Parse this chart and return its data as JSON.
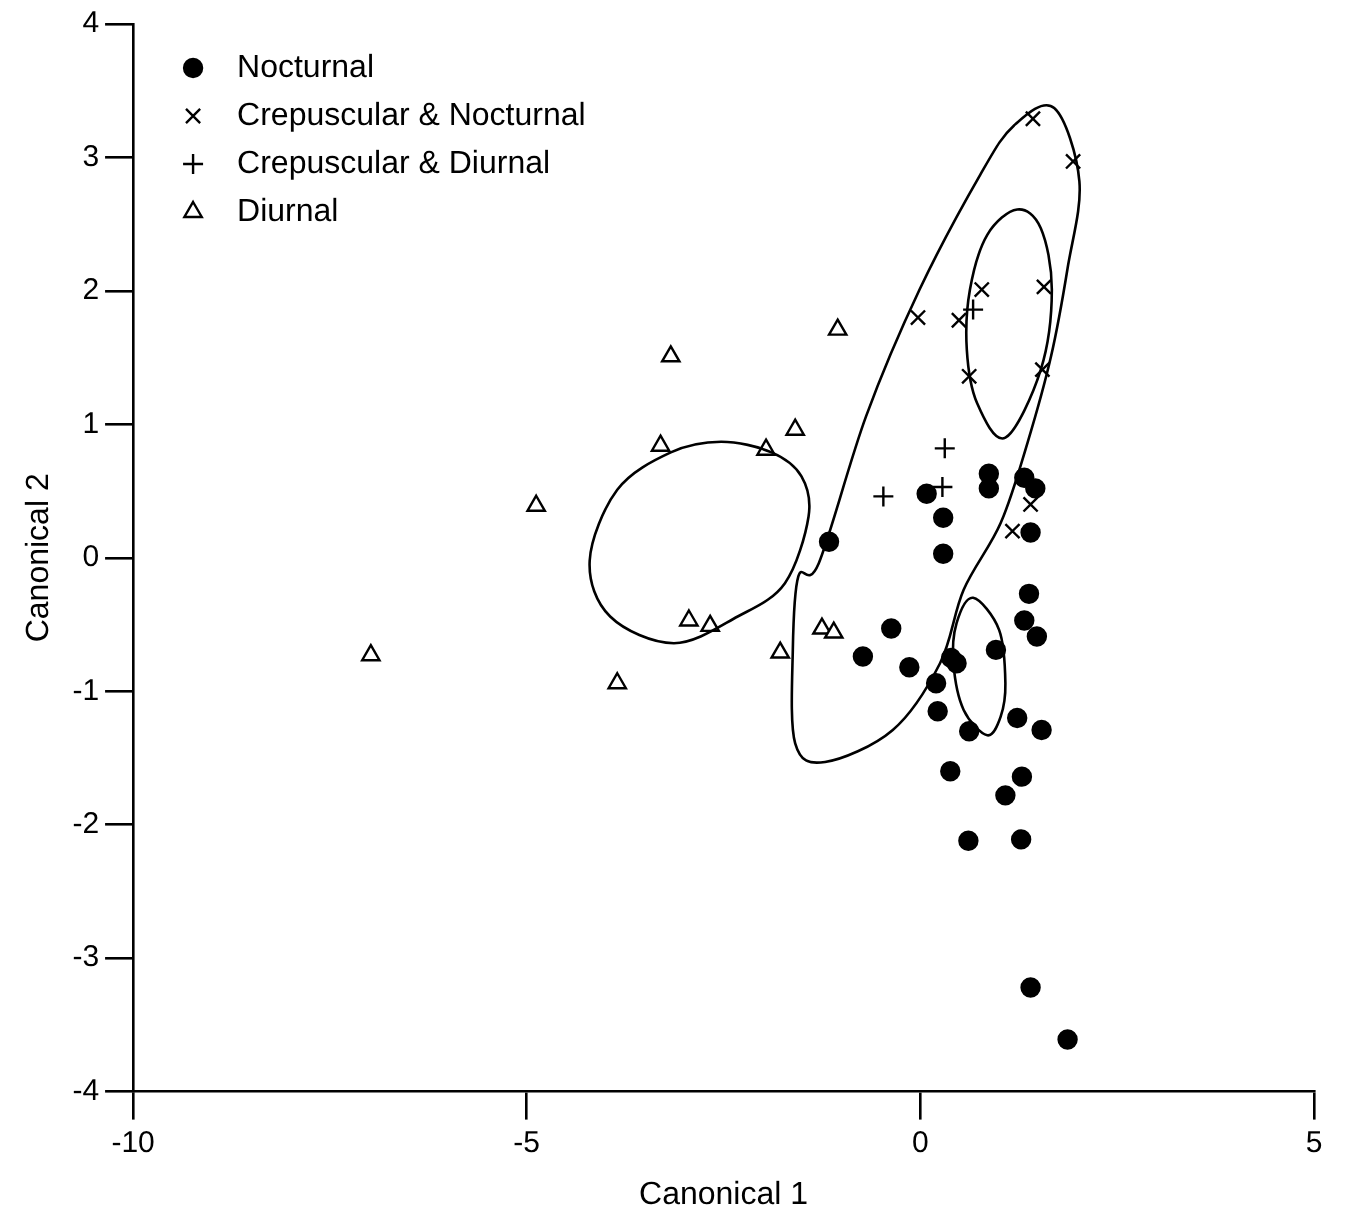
{
  "chart_data": {
    "type": "scatter",
    "xlabel": "Canonical 1",
    "ylabel": "Canonical 2",
    "xlim": [
      -10,
      5
    ],
    "xticks": [
      -10,
      -5,
      0,
      5
    ],
    "ylim": [
      -4,
      4
    ],
    "yticks": [
      -4,
      -3,
      -2,
      -1,
      0,
      1,
      2,
      3,
      4
    ],
    "grid": false,
    "legend": "top left",
    "series": [
      {
        "name": "Nocturnal",
        "color": "#000000",
        "marker": "circle",
        "x": [
          -1.16,
          0.08,
          0.29,
          0.29,
          0.87,
          0.87,
          1.32,
          1.46,
          1.4,
          1.38,
          1.32,
          1.48,
          -0.37,
          -0.73,
          -0.14,
          0.39,
          0.46,
          0.96,
          0.2,
          0.22,
          0.62,
          1.23,
          1.54,
          0.38,
          1.29,
          1.08,
          0.61,
          1.28,
          1.4,
          1.87
        ],
        "values": [
          0.12,
          0.48,
          0.3,
          0.03,
          0.63,
          0.52,
          0.6,
          0.52,
          0.19,
          -0.27,
          -0.47,
          -0.59,
          -0.53,
          -0.74,
          -0.82,
          -0.75,
          -0.79,
          -0.69,
          -0.94,
          -1.15,
          -1.3,
          -1.2,
          -1.29,
          -1.6,
          -1.64,
          -1.78,
          -2.12,
          -2.11,
          -3.22,
          -3.61
        ]
      },
      {
        "name": "Crepuscular & Nocturnal",
        "color": "#000000",
        "marker": "cross",
        "x": [
          1.43,
          1.94,
          0.78,
          1.57,
          -0.03,
          0.49,
          0.62,
          1.55,
          1.4,
          1.17
        ],
        "values": [
          3.29,
          2.97,
          2.01,
          2.03,
          1.8,
          1.78,
          1.36,
          1.41,
          0.4,
          0.2
        ]
      },
      {
        "name": "Crepuscular & Diurnal",
        "color": "#000000",
        "marker": "plus",
        "x": [
          0.67,
          0.31,
          0.28,
          -0.47
        ],
        "values": [
          1.86,
          0.82,
          0.53,
          0.46
        ]
      },
      {
        "name": "Diurnal",
        "color": "#000000",
        "marker": "triangle",
        "x": [
          -1.05,
          -3.17,
          -1.59,
          -3.3,
          -1.96,
          -4.88,
          -2.94,
          -2.67,
          -1.25,
          -1.1,
          -1.78,
          -6.98,
          -3.85
        ],
        "values": [
          1.71,
          1.51,
          0.96,
          0.84,
          0.81,
          0.39,
          -0.47,
          -0.51,
          -0.53,
          -0.56,
          -0.71,
          -0.73,
          -0.94
        ]
      }
    ]
  }
}
